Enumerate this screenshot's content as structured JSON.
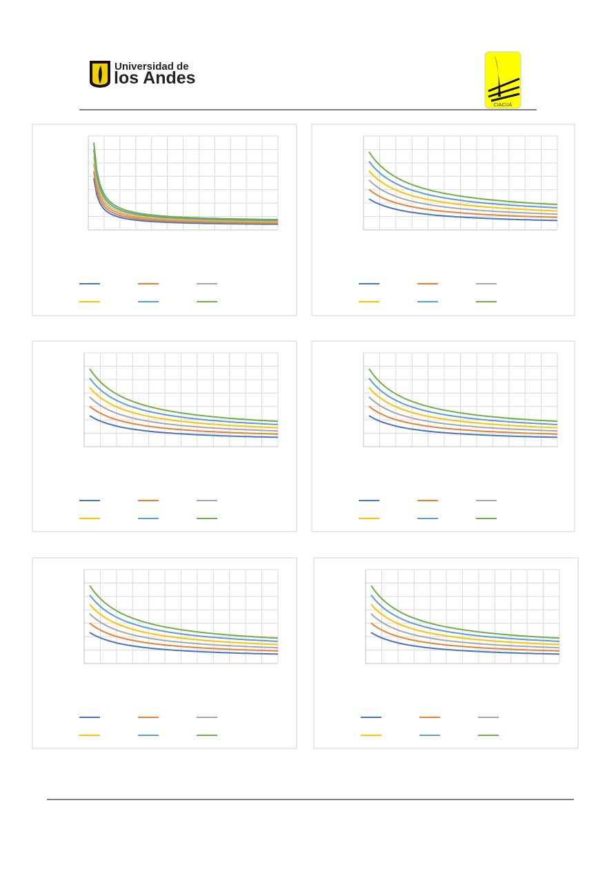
{
  "header": {
    "university_line_1": "Universidad de",
    "university_line_2": "los Andes",
    "logo_text": "CIACUA"
  }
}
